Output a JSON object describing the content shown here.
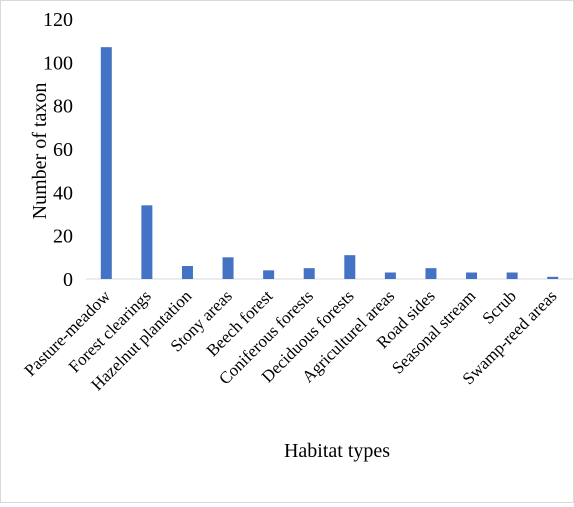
{
  "chart_data": {
    "type": "bar",
    "title": "",
    "xlabel": "Habitat types",
    "ylabel": "Number of taxon",
    "categories": [
      "Pasture-meadow",
      "Forest clearings",
      "Hazelnut plantation",
      "Stony areas",
      "Beech forest",
      "Coniferous forests",
      "Deciduous forests",
      "Agriculturel areas",
      "Road sides",
      "Seasonal stream",
      "Scrub",
      "Swamp-reed areas"
    ],
    "values": [
      107,
      34,
      6,
      10,
      4,
      5,
      11,
      3,
      5,
      3,
      3,
      1
    ],
    "ylim": [
      0,
      120
    ],
    "yticks": [
      0,
      20,
      40,
      60,
      80,
      100,
      120
    ],
    "grid": false,
    "legend": "none",
    "bar_color": "#4472c4",
    "axis_color": "#d9d9d9"
  }
}
